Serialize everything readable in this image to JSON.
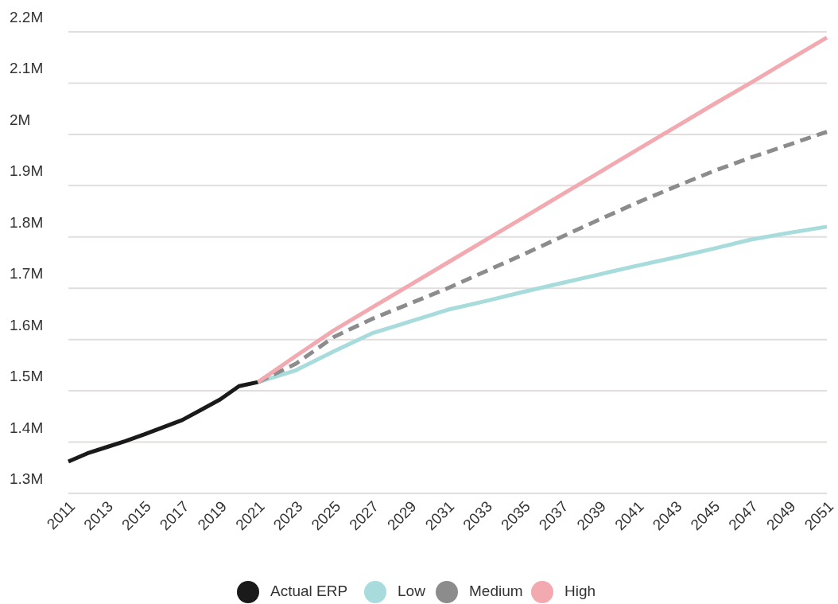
{
  "chart_data": {
    "type": "line",
    "x": [
      2011,
      2012,
      2013,
      2014,
      2015,
      2016,
      2017,
      2018,
      2019,
      2020,
      2021
    ],
    "xlim": [
      2011,
      2051
    ],
    "xticks": [
      2011,
      2013,
      2015,
      2017,
      2019,
      2021,
      2023,
      2025,
      2027,
      2029,
      2031,
      2033,
      2035,
      2037,
      2039,
      2041,
      2043,
      2045,
      2047,
      2049,
      2051
    ],
    "ylim": [
      1.3,
      2.2
    ],
    "yticks": [
      {
        "value": 1.3,
        "label": "1.3M"
      },
      {
        "value": 1.4,
        "label": "1.4M"
      },
      {
        "value": 1.5,
        "label": "1.5M"
      },
      {
        "value": 1.6,
        "label": "1.6M"
      },
      {
        "value": 1.7,
        "label": "1.7M"
      },
      {
        "value": 1.8,
        "label": "1.8M"
      },
      {
        "value": 1.9,
        "label": "1.9M"
      },
      {
        "value": 2,
        "label": "2M"
      },
      {
        "value": 2.1,
        "label": "2.1M"
      },
      {
        "value": 2.2,
        "label": "2.2M"
      }
    ],
    "grid": "y",
    "legend": "bottom",
    "marker": "none",
    "series": [
      {
        "name": "Actual ERP",
        "color": "#1a1a1a",
        "values": [
          1.362,
          1.378,
          1.39,
          1.402,
          1.415,
          1.429,
          1.443,
          1.463,
          1.483,
          1.509,
          1.517
        ]
      },
      {
        "name": "Low",
        "color": "#a8dcdc",
        "x": [
          2021,
          2023,
          2025,
          2027,
          2029,
          2031,
          2033,
          2035,
          2037,
          2039,
          2041,
          2043,
          2045,
          2047,
          2049,
          2051
        ],
        "values": [
          1.517,
          1.54,
          1.577,
          1.612,
          1.635,
          1.658,
          1.675,
          1.693,
          1.71,
          1.727,
          1.744,
          1.76,
          1.777,
          1.795,
          1.808,
          1.82
        ]
      },
      {
        "name": "Medium",
        "color": "#8c8c8c",
        "line_style": "dashed",
        "x": [
          2021,
          2023,
          2025,
          2027,
          2029,
          2031,
          2033,
          2035,
          2037,
          2039,
          2041,
          2043,
          2045,
          2047,
          2049,
          2051
        ],
        "values": [
          1.517,
          1.553,
          1.605,
          1.64,
          1.67,
          1.7,
          1.733,
          1.766,
          1.8,
          1.834,
          1.867,
          1.898,
          1.928,
          1.955,
          1.98,
          2.005
        ]
      },
      {
        "name": "High",
        "color": "#f2a9b0",
        "x": [
          2021,
          2023,
          2025,
          2027,
          2029,
          2031,
          2033,
          2035,
          2037,
          2039,
          2041,
          2043,
          2045,
          2047,
          2049,
          2051
        ],
        "values": [
          1.517,
          1.568,
          1.618,
          1.662,
          1.706,
          1.75,
          1.794,
          1.838,
          1.882,
          1.926,
          1.97,
          2.014,
          2.058,
          2.101,
          2.145,
          2.189
        ]
      }
    ]
  }
}
